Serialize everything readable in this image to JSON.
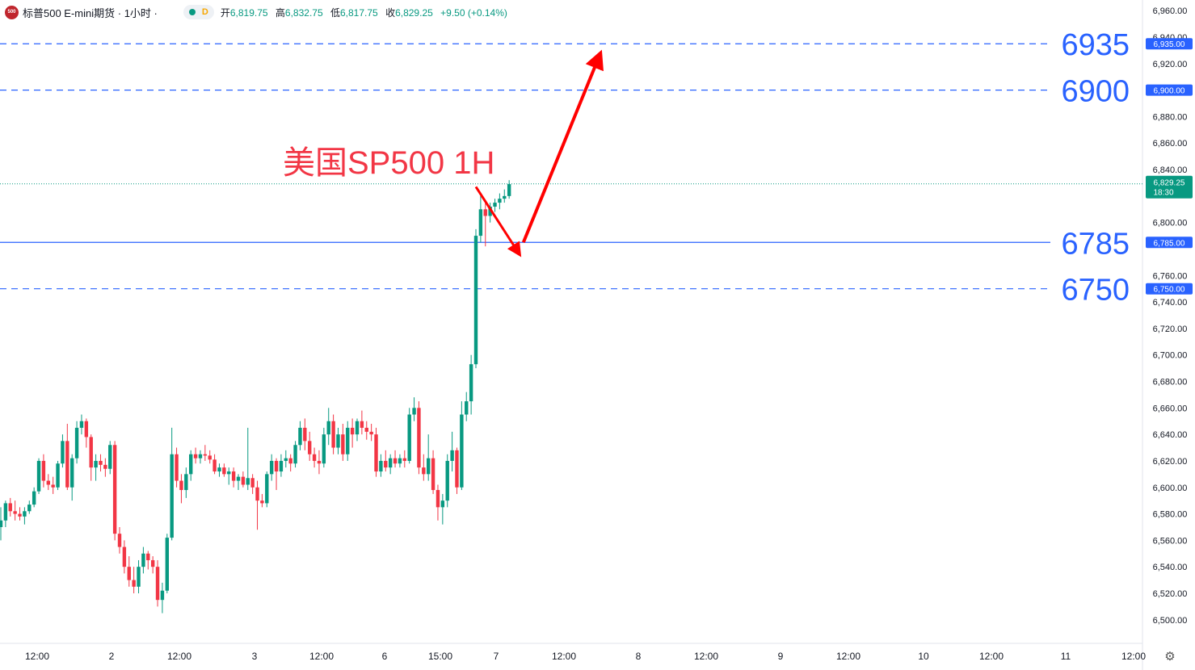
{
  "header": {
    "logo_text": "500",
    "title": "标普500 E-mini期货 · 1小时 ·",
    "status_letter": "D",
    "open_label": "开",
    "open": "6,819.75",
    "high_label": "高",
    "high": "6,832.75",
    "low_label": "低",
    "low": "6,817.75",
    "close_label": "收",
    "close": "6,829.25",
    "change": "+9.50 (+0.14%)"
  },
  "colors": {
    "up": "#089981",
    "down": "#f23645",
    "level_line": "#2962ff",
    "arrow": "#ff0000",
    "annotation": "#f23645"
  },
  "chart_data": {
    "type": "candlestick",
    "title": "美国SP500 1H",
    "ylim": [
      6495,
      6965
    ],
    "y_ticks": [
      "6,960.00",
      "6,940.00",
      "6,920.00",
      "6,880.00",
      "6,860.00",
      "6,840.00",
      "6,800.00",
      "6,760.00",
      "6,740.00",
      "6,720.00",
      "6,700.00",
      "6,680.00",
      "6,660.00",
      "6,640.00",
      "6,620.00",
      "6,600.00",
      "6,580.00",
      "6,560.00",
      "6,540.00",
      "6,520.00",
      "6,500.00"
    ],
    "x_ticks": [
      "12:00",
      "2",
      "12:00",
      "3",
      "12:00",
      "6",
      "15:00",
      "7",
      "12:00",
      "8",
      "12:00",
      "9",
      "12:00",
      "10",
      "12:00",
      "11",
      "12:00"
    ],
    "levels": [
      {
        "value": 6935,
        "label": "6935",
        "tag": "6,935.00",
        "style": "dashed"
      },
      {
        "value": 6900,
        "label": "6900",
        "tag": "6,900.00",
        "style": "dashed"
      },
      {
        "value": 6785,
        "label": "6785",
        "tag": "6,785.00",
        "style": "solid"
      },
      {
        "value": 6750,
        "label": "6750",
        "tag": "6,750.00",
        "style": "dashed"
      }
    ],
    "last_price": {
      "value": 6829.25,
      "tag": "6,829.25",
      "countdown": "18:30"
    },
    "projection": [
      {
        "from_bar": 100,
        "from_price": 6827,
        "to_bar": 109,
        "to_price": 6777
      },
      {
        "from_bar": 110,
        "from_price": 6785,
        "to_bar": 126,
        "to_price": 6926
      }
    ],
    "ohlc": [
      [
        6570,
        6585,
        6560,
        6575
      ],
      [
        6575,
        6590,
        6570,
        6588
      ],
      [
        6588,
        6592,
        6578,
        6582
      ],
      [
        6582,
        6590,
        6575,
        6580
      ],
      [
        6580,
        6585,
        6575,
        6578
      ],
      [
        6578,
        6585,
        6572,
        6582
      ],
      [
        6582,
        6590,
        6580,
        6587
      ],
      [
        6587,
        6600,
        6585,
        6597
      ],
      [
        6597,
        6622,
        6595,
        6620
      ],
      [
        6620,
        6625,
        6600,
        6605
      ],
      [
        6605,
        6610,
        6598,
        6602
      ],
      [
        6602,
        6608,
        6595,
        6600
      ],
      [
        6600,
        6620,
        6598,
        6618
      ],
      [
        6618,
        6640,
        6615,
        6635
      ],
      [
        6635,
        6648,
        6598,
        6600
      ],
      [
        6600,
        6625,
        6590,
        6622
      ],
      [
        6622,
        6650,
        6618,
        6645
      ],
      [
        6645,
        6655,
        6640,
        6650
      ],
      [
        6650,
        6652,
        6630,
        6638
      ],
      [
        6638,
        6640,
        6605,
        6615
      ],
      [
        6615,
        6625,
        6605,
        6620
      ],
      [
        6620,
        6625,
        6612,
        6617
      ],
      [
        6617,
        6622,
        6608,
        6614
      ],
      [
        6614,
        6635,
        6610,
        6632
      ],
      [
        6632,
        6635,
        6560,
        6565
      ],
      [
        6565,
        6570,
        6550,
        6555
      ],
      [
        6555,
        6560,
        6535,
        6540
      ],
      [
        6540,
        6548,
        6525,
        6530
      ],
      [
        6530,
        6540,
        6520,
        6525
      ],
      [
        6525,
        6545,
        6520,
        6540
      ],
      [
        6540,
        6555,
        6535,
        6550
      ],
      [
        6550,
        6552,
        6538,
        6545
      ],
      [
        6545,
        6548,
        6535,
        6540
      ],
      [
        6540,
        6545,
        6510,
        6515
      ],
      [
        6515,
        6528,
        6505,
        6522
      ],
      [
        6522,
        6565,
        6520,
        6562
      ],
      [
        6562,
        6645,
        6560,
        6625
      ],
      [
        6625,
        6630,
        6600,
        6605
      ],
      [
        6605,
        6610,
        6588,
        6598
      ],
      [
        6598,
        6615,
        6592,
        6610
      ],
      [
        6610,
        6628,
        6605,
        6625
      ],
      [
        6625,
        6630,
        6618,
        6622
      ],
      [
        6622,
        6628,
        6618,
        6625
      ],
      [
        6625,
        6632,
        6620,
        6624
      ],
      [
        6624,
        6628,
        6618,
        6621
      ],
      [
        6621,
        6625,
        6610,
        6612
      ],
      [
        6612,
        6618,
        6608,
        6615
      ],
      [
        6615,
        6618,
        6608,
        6610
      ],
      [
        6610,
        6615,
        6602,
        6612
      ],
      [
        6612,
        6615,
        6600,
        6605
      ],
      [
        6605,
        6610,
        6598,
        6608
      ],
      [
        6608,
        6612,
        6600,
        6602
      ],
      [
        6602,
        6645,
        6598,
        6607
      ],
      [
        6607,
        6610,
        6595,
        6600
      ],
      [
        6600,
        6605,
        6568,
        6590
      ],
      [
        6590,
        6595,
        6585,
        6588
      ],
      [
        6588,
        6612,
        6585,
        6610
      ],
      [
        6610,
        6625,
        6605,
        6620
      ],
      [
        6620,
        6622,
        6598,
        6612
      ],
      [
        6612,
        6625,
        6608,
        6620
      ],
      [
        6620,
        6628,
        6615,
        6622
      ],
      [
        6622,
        6625,
        6612,
        6618
      ],
      [
        6618,
        6635,
        6615,
        6632
      ],
      [
        6632,
        6650,
        6628,
        6645
      ],
      [
        6645,
        6652,
        6628,
        6635
      ],
      [
        6635,
        6642,
        6620,
        6625
      ],
      [
        6625,
        6630,
        6615,
        6620
      ],
      [
        6620,
        6628,
        6610,
        6618
      ],
      [
        6618,
        6645,
        6615,
        6640
      ],
      [
        6640,
        6660,
        6632,
        6650
      ],
      [
        6650,
        6655,
        6625,
        6630
      ],
      [
        6630,
        6645,
        6625,
        6640
      ],
      [
        6640,
        6648,
        6620,
        6625
      ],
      [
        6625,
        6650,
        6620,
        6645
      ],
      [
        6645,
        6652,
        6630,
        6640
      ],
      [
        6640,
        6652,
        6635,
        6650
      ],
      [
        6650,
        6658,
        6640,
        6645
      ],
      [
        6645,
        6650,
        6636,
        6642
      ],
      [
        6642,
        6648,
        6635,
        6640
      ],
      [
        6640,
        6645,
        6608,
        6612
      ],
      [
        6612,
        6625,
        6608,
        6620
      ],
      [
        6620,
        6628,
        6612,
        6615
      ],
      [
        6615,
        6625,
        6610,
        6622
      ],
      [
        6622,
        6628,
        6615,
        6618
      ],
      [
        6618,
        6625,
        6615,
        6622
      ],
      [
        6622,
        6628,
        6615,
        6620
      ],
      [
        6620,
        6660,
        6618,
        6655
      ],
      [
        6655,
        6668,
        6650,
        6660
      ],
      [
        6660,
        6665,
        6610,
        6615
      ],
      [
        6615,
        6625,
        6605,
        6610
      ],
      [
        6610,
        6640,
        6605,
        6622
      ],
      [
        6622,
        6628,
        6595,
        6598
      ],
      [
        6598,
        6602,
        6575,
        6585
      ],
      [
        6585,
        6595,
        6572,
        6590
      ],
      [
        6590,
        6625,
        6585,
        6620
      ],
      [
        6620,
        6642,
        6612,
        6628
      ],
      [
        6628,
        6630,
        6595,
        6600
      ],
      [
        6600,
        6665,
        6598,
        6655
      ],
      [
        6655,
        6672,
        6650,
        6665
      ],
      [
        6665,
        6700,
        6655,
        6693
      ],
      [
        6693,
        6795,
        6690,
        6790
      ],
      [
        6790,
        6820,
        6785,
        6810
      ],
      [
        6810,
        6815,
        6782,
        6805
      ],
      [
        6805,
        6815,
        6800,
        6812
      ],
      [
        6812,
        6818,
        6808,
        6815
      ],
      [
        6815,
        6822,
        6810,
        6818
      ],
      [
        6818,
        6825,
        6815,
        6820
      ],
      [
        6820,
        6832,
        6818,
        6829
      ]
    ]
  }
}
